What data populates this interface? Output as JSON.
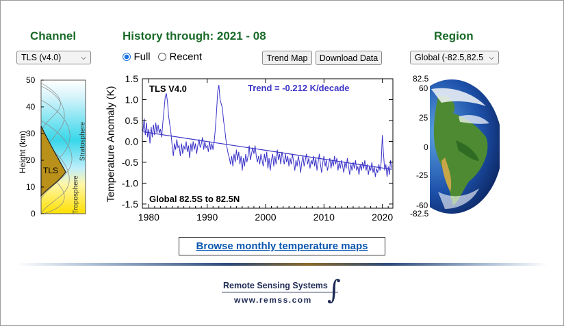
{
  "channel": {
    "title": "Channel",
    "select_value": "TLS (v4.0)"
  },
  "history": {
    "title": "History through: 2021 - 08",
    "option_full": "Full",
    "option_recent": "Recent",
    "trend_map_label": "Trend Map",
    "download_label": "Download Data"
  },
  "region": {
    "title": "Region",
    "select_value": "Global (-82.5,82.5"
  },
  "profile": {
    "ylabel": "Height  (km)",
    "yticks": [
      "50",
      "40",
      "30",
      "20",
      "10",
      "0"
    ],
    "channel_label": "TLS",
    "stratosphere": "Stratosphere",
    "troposphere": "Troposphere"
  },
  "chart_labels": {
    "inset_title": "TLS V4.0",
    "trend": "Trend = -0.212 K/decade",
    "region_text": "Global  82.5S to  82.5N",
    "ylabel": "Temperature Anomaly (K)"
  },
  "chart_data": {
    "type": "line",
    "title": "TLS V4.0",
    "xlabel": "",
    "ylabel": "Temperature Anomaly (K)",
    "xlim": [
      1978.9,
      2021.8
    ],
    "ylim": [
      -1.6,
      1.5
    ],
    "xticks": [
      1980,
      1990,
      2000,
      2010,
      2020
    ],
    "yticks": [
      1.5,
      1.0,
      0.5,
      0.0,
      -0.5,
      -1.0,
      -1.5
    ],
    "grid": false,
    "series": [
      {
        "values": [
          [
            1979.0,
            0.25
          ],
          [
            1979.2,
            0.55
          ],
          [
            1979.4,
            0.15
          ],
          [
            1979.6,
            0.45
          ],
          [
            1979.8,
            0.1
          ],
          [
            1980.0,
            0.3
          ],
          [
            1980.2,
            -0.05
          ],
          [
            1980.4,
            0.35
          ],
          [
            1980.6,
            0.1
          ],
          [
            1980.8,
            0.4
          ],
          [
            1981.0,
            0.15
          ],
          [
            1981.2,
            0.45
          ],
          [
            1981.4,
            0.2
          ],
          [
            1981.6,
            0.4
          ],
          [
            1981.8,
            0.2
          ],
          [
            1982.0,
            0.3
          ],
          [
            1982.2,
            0.1
          ],
          [
            1982.4,
            0.45
          ],
          [
            1982.6,
            0.75
          ],
          [
            1982.8,
            1.05
          ],
          [
            1983.0,
            1.15
          ],
          [
            1983.2,
            0.95
          ],
          [
            1983.4,
            0.6
          ],
          [
            1983.6,
            0.4
          ],
          [
            1983.8,
            0.2
          ],
          [
            1984.0,
            -0.1
          ],
          [
            1984.2,
            -0.35
          ],
          [
            1984.4,
            -0.05
          ],
          [
            1984.6,
            -0.2
          ],
          [
            1984.8,
            0.05
          ],
          [
            1985.0,
            -0.15
          ],
          [
            1985.2,
            -0.1
          ],
          [
            1985.4,
            -0.35
          ],
          [
            1985.6,
            -0.05
          ],
          [
            1985.8,
            -0.3
          ],
          [
            1986.0,
            -0.1
          ],
          [
            1986.2,
            -0.2
          ],
          [
            1986.4,
            0.0
          ],
          [
            1986.6,
            -0.25
          ],
          [
            1986.8,
            -0.1
          ],
          [
            1987.0,
            -0.4
          ],
          [
            1987.2,
            -0.05
          ],
          [
            1987.4,
            -0.25
          ],
          [
            1987.6,
            0.0
          ],
          [
            1987.8,
            -0.2
          ],
          [
            1988.0,
            -0.05
          ],
          [
            1988.2,
            -0.3
          ],
          [
            1988.4,
            -0.1
          ],
          [
            1988.6,
            0.05
          ],
          [
            1988.8,
            -0.15
          ],
          [
            1989.0,
            -0.05
          ],
          [
            1989.2,
            0.1
          ],
          [
            1989.4,
            -0.2
          ],
          [
            1989.6,
            0.0
          ],
          [
            1989.8,
            -0.15
          ],
          [
            1990.0,
            -0.1
          ],
          [
            1990.2,
            -0.25
          ],
          [
            1990.4,
            0.0
          ],
          [
            1990.6,
            -0.2
          ],
          [
            1990.8,
            -0.05
          ],
          [
            1991.0,
            -0.2
          ],
          [
            1991.2,
            0.0
          ],
          [
            1991.4,
            0.3
          ],
          [
            1991.6,
            0.7
          ],
          [
            1991.8,
            1.2
          ],
          [
            1992.0,
            1.35
          ],
          [
            1992.2,
            1.0
          ],
          [
            1992.4,
            0.9
          ],
          [
            1992.6,
            0.8
          ],
          [
            1992.8,
            0.5
          ],
          [
            1993.0,
            0.3
          ],
          [
            1993.2,
            0.05
          ],
          [
            1993.4,
            -0.15
          ],
          [
            1993.6,
            -0.3
          ],
          [
            1993.8,
            -0.4
          ],
          [
            1994.0,
            -0.55
          ],
          [
            1994.2,
            -0.35
          ],
          [
            1994.4,
            -0.6
          ],
          [
            1994.6,
            -0.3
          ],
          [
            1994.8,
            -0.5
          ],
          [
            1995.0,
            -0.2
          ],
          [
            1995.2,
            -0.45
          ],
          [
            1995.4,
            -0.25
          ],
          [
            1995.6,
            -0.55
          ],
          [
            1995.8,
            -0.35
          ],
          [
            1996.0,
            -0.7
          ],
          [
            1996.2,
            -0.4
          ],
          [
            1996.4,
            -0.6
          ],
          [
            1996.6,
            -0.3
          ],
          [
            1996.8,
            -0.5
          ],
          [
            1997.0,
            -0.35
          ],
          [
            1997.2,
            -0.1
          ],
          [
            1997.4,
            -0.45
          ],
          [
            1997.6,
            -0.3
          ],
          [
            1997.8,
            -0.15
          ],
          [
            1998.0,
            -0.3
          ],
          [
            1998.2,
            -0.1
          ],
          [
            1998.4,
            -0.35
          ],
          [
            1998.6,
            -0.5
          ],
          [
            1998.8,
            -0.35
          ],
          [
            1999.0,
            -0.55
          ],
          [
            1999.2,
            -0.3
          ],
          [
            1999.4,
            -0.45
          ],
          [
            1999.6,
            -0.6
          ],
          [
            1999.8,
            -0.3
          ],
          [
            2000.0,
            -0.5
          ],
          [
            2000.2,
            -0.25
          ],
          [
            2000.4,
            -0.65
          ],
          [
            2000.6,
            -0.4
          ],
          [
            2000.8,
            -0.7
          ],
          [
            2001.0,
            -0.45
          ],
          [
            2001.2,
            -0.3
          ],
          [
            2001.4,
            -0.6
          ],
          [
            2001.6,
            -0.35
          ],
          [
            2001.8,
            -0.55
          ],
          [
            2002.0,
            -0.2
          ],
          [
            2002.2,
            -0.45
          ],
          [
            2002.4,
            -0.3
          ],
          [
            2002.6,
            -0.55
          ],
          [
            2002.8,
            -0.25
          ],
          [
            2003.0,
            -0.4
          ],
          [
            2003.2,
            -0.55
          ],
          [
            2003.4,
            -0.3
          ],
          [
            2003.6,
            -0.5
          ],
          [
            2003.8,
            -0.35
          ],
          [
            2004.0,
            -0.6
          ],
          [
            2004.2,
            -0.4
          ],
          [
            2004.4,
            -0.55
          ],
          [
            2004.6,
            -0.3
          ],
          [
            2004.8,
            -0.5
          ],
          [
            2005.0,
            -0.7
          ],
          [
            2005.2,
            -0.45
          ],
          [
            2005.4,
            -0.6
          ],
          [
            2005.6,
            -0.35
          ],
          [
            2005.8,
            -0.5
          ],
          [
            2006.0,
            -0.75
          ],
          [
            2006.2,
            -0.5
          ],
          [
            2006.4,
            -0.35
          ],
          [
            2006.6,
            -0.6
          ],
          [
            2006.8,
            -0.45
          ],
          [
            2007.0,
            -0.3
          ],
          [
            2007.2,
            -0.55
          ],
          [
            2007.4,
            -0.4
          ],
          [
            2007.6,
            -0.65
          ],
          [
            2007.8,
            -0.45
          ],
          [
            2008.0,
            -0.55
          ],
          [
            2008.2,
            -0.35
          ],
          [
            2008.4,
            -0.6
          ],
          [
            2008.6,
            -0.4
          ],
          [
            2008.8,
            -0.7
          ],
          [
            2009.0,
            -0.5
          ],
          [
            2009.2,
            -0.3
          ],
          [
            2009.4,
            -0.55
          ],
          [
            2009.6,
            -0.75
          ],
          [
            2009.8,
            -0.5
          ],
          [
            2010.0,
            -0.35
          ],
          [
            2010.2,
            -0.6
          ],
          [
            2010.4,
            -0.45
          ],
          [
            2010.6,
            -0.7
          ],
          [
            2010.8,
            -0.55
          ],
          [
            2011.0,
            -0.4
          ],
          [
            2011.2,
            -0.65
          ],
          [
            2011.4,
            -0.45
          ],
          [
            2011.6,
            -0.6
          ],
          [
            2011.8,
            -0.35
          ],
          [
            2012.0,
            -0.55
          ],
          [
            2012.2,
            -0.4
          ],
          [
            2012.4,
            -0.7
          ],
          [
            2012.6,
            -0.5
          ],
          [
            2012.8,
            -0.65
          ],
          [
            2013.0,
            -0.45
          ],
          [
            2013.2,
            -0.6
          ],
          [
            2013.4,
            -0.75
          ],
          [
            2013.6,
            -0.5
          ],
          [
            2013.8,
            -0.65
          ],
          [
            2014.0,
            -0.4
          ],
          [
            2014.2,
            -0.6
          ],
          [
            2014.4,
            -0.8
          ],
          [
            2014.6,
            -0.55
          ],
          [
            2014.8,
            -0.7
          ],
          [
            2015.0,
            -0.5
          ],
          [
            2015.2,
            -0.65
          ],
          [
            2015.4,
            -0.45
          ],
          [
            2015.6,
            -0.7
          ],
          [
            2015.8,
            -0.6
          ],
          [
            2016.0,
            -0.8
          ],
          [
            2016.2,
            -0.55
          ],
          [
            2016.4,
            -0.7
          ],
          [
            2016.6,
            -0.5
          ],
          [
            2016.8,
            -0.65
          ],
          [
            2017.0,
            -0.45
          ],
          [
            2017.2,
            -0.7
          ],
          [
            2017.4,
            -0.55
          ],
          [
            2017.6,
            -0.8
          ],
          [
            2017.8,
            -0.6
          ],
          [
            2018.0,
            -0.7
          ],
          [
            2018.2,
            -0.5
          ],
          [
            2018.4,
            -0.75
          ],
          [
            2018.6,
            -0.6
          ],
          [
            2018.8,
            -0.85
          ],
          [
            2019.0,
            -0.65
          ],
          [
            2019.2,
            -0.75
          ],
          [
            2019.4,
            -0.55
          ],
          [
            2019.6,
            -0.7
          ],
          [
            2019.8,
            -0.5
          ],
          [
            2020.0,
            0.15
          ],
          [
            2020.2,
            -0.3
          ],
          [
            2020.4,
            -0.7
          ],
          [
            2020.6,
            -0.55
          ],
          [
            2020.8,
            -0.85
          ],
          [
            2021.0,
            -0.6
          ],
          [
            2021.2,
            -0.8
          ],
          [
            2021.4,
            -0.45
          ],
          [
            2021.6,
            -0.65
          ]
        ]
      },
      {
        "values": [
          [
            1979.0,
            0.23
          ],
          [
            2021.6,
            -0.67
          ]
        ]
      }
    ]
  },
  "globe": {
    "ticks": [
      "82.5",
      "60",
      "25",
      "0",
      "-25",
      "-60",
      "-82.5"
    ]
  },
  "browse_label": "Browse monthly temperature maps",
  "footer": {
    "company": "Remote Sensing Systems",
    "url": "www.remss.com"
  },
  "colors": {
    "header_green": "#1a6b2a",
    "line_blue": "#3b33c8",
    "link_blue": "#0b57b0",
    "tls_fill": "#b8901a"
  }
}
